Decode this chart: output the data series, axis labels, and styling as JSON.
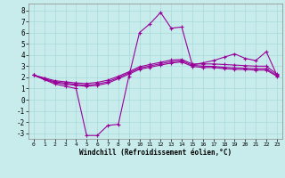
{
  "xlabel": "Windchill (Refroidissement éolien,°C)",
  "background_color": "#c8ecec",
  "grid_color": "#a8d8d8",
  "line_color": "#990099",
  "xlim": [
    -0.5,
    23.5
  ],
  "ylim": [
    -3.5,
    8.6
  ],
  "yticks": [
    -3,
    -2,
    -1,
    0,
    1,
    2,
    3,
    4,
    5,
    6,
    7,
    8
  ],
  "xticks": [
    0,
    1,
    2,
    3,
    4,
    5,
    6,
    7,
    8,
    9,
    10,
    11,
    12,
    13,
    14,
    15,
    16,
    17,
    18,
    19,
    20,
    21,
    22,
    23
  ],
  "series": [
    [
      2.2,
      1.8,
      1.4,
      1.2,
      1.0,
      -3.2,
      -3.2,
      -2.3,
      -2.2,
      2.1,
      6.0,
      6.8,
      7.8,
      6.4,
      6.5,
      3.1,
      3.3,
      3.5,
      3.8,
      4.1,
      3.7,
      3.5,
      4.3,
      2.2
    ],
    [
      2.2,
      1.95,
      1.7,
      1.6,
      1.5,
      1.45,
      1.55,
      1.75,
      2.1,
      2.5,
      2.95,
      3.15,
      3.35,
      3.55,
      3.6,
      3.2,
      3.2,
      3.2,
      3.15,
      3.1,
      3.05,
      3.0,
      3.0,
      2.3
    ],
    [
      2.2,
      1.88,
      1.6,
      1.48,
      1.38,
      1.3,
      1.4,
      1.6,
      1.98,
      2.4,
      2.82,
      3.02,
      3.22,
      3.4,
      3.48,
      3.08,
      3.0,
      2.98,
      2.9,
      2.85,
      2.82,
      2.78,
      2.78,
      2.18
    ],
    [
      2.2,
      1.82,
      1.52,
      1.38,
      1.28,
      1.2,
      1.28,
      1.48,
      1.88,
      2.28,
      2.72,
      2.9,
      3.1,
      3.28,
      3.38,
      2.98,
      2.88,
      2.88,
      2.78,
      2.72,
      2.7,
      2.65,
      2.65,
      2.1
    ]
  ],
  "has_markers": [
    true,
    true,
    true,
    true
  ]
}
